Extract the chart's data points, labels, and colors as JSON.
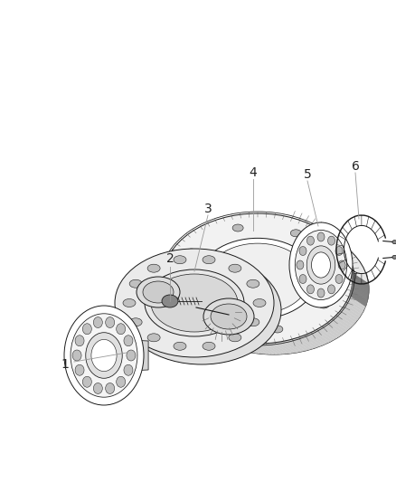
{
  "background_color": "#ffffff",
  "fig_width": 4.38,
  "fig_height": 5.33,
  "dpi": 100,
  "label_fontsize": 10,
  "drawing_color": "#1a1a1a",
  "light_fill": "#f0f0f0",
  "mid_fill": "#d8d8d8",
  "dark_fill": "#aaaaaa",
  "line_color": "#888888",
  "label_color": "#222222"
}
